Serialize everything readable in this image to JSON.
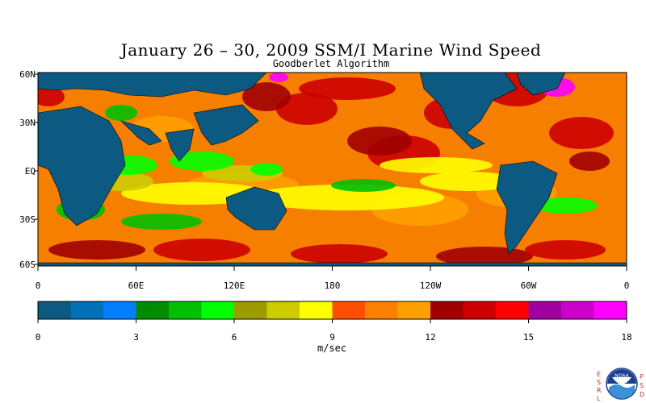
{
  "title": "January 26 – 30, 2009 SSM/I Marine Wind Speed",
  "subtitle": "Goodberlet Algorithm",
  "map": {
    "lat_labels": [
      "60N",
      "30N",
      "EQ",
      "30S",
      "60S"
    ],
    "lon_labels": [
      "0",
      "60E",
      "120E",
      "180",
      "120W",
      "60W",
      "0"
    ],
    "land_color": "#0c5a82",
    "ocean_base_color": "#f77f00"
  },
  "colorbar": {
    "colors": [
      "#0c5a82",
      "#0070b8",
      "#0080ff",
      "#008c00",
      "#00c000",
      "#00ff00",
      "#9c9c00",
      "#cccc00",
      "#ffff00",
      "#ff5000",
      "#ff7f00",
      "#ffa000",
      "#a00000",
      "#cc0000",
      "#ff0000",
      "#a000a0",
      "#cc00cc",
      "#ff00ff"
    ],
    "tick_labels": [
      "0",
      "3",
      "6",
      "9",
      "12",
      "15",
      "18"
    ],
    "min": 0,
    "max": 18,
    "units": "m/sec"
  },
  "logo": {
    "left_letters": "ESRL",
    "right_letters": "PSD",
    "emblem": "NOAA"
  }
}
